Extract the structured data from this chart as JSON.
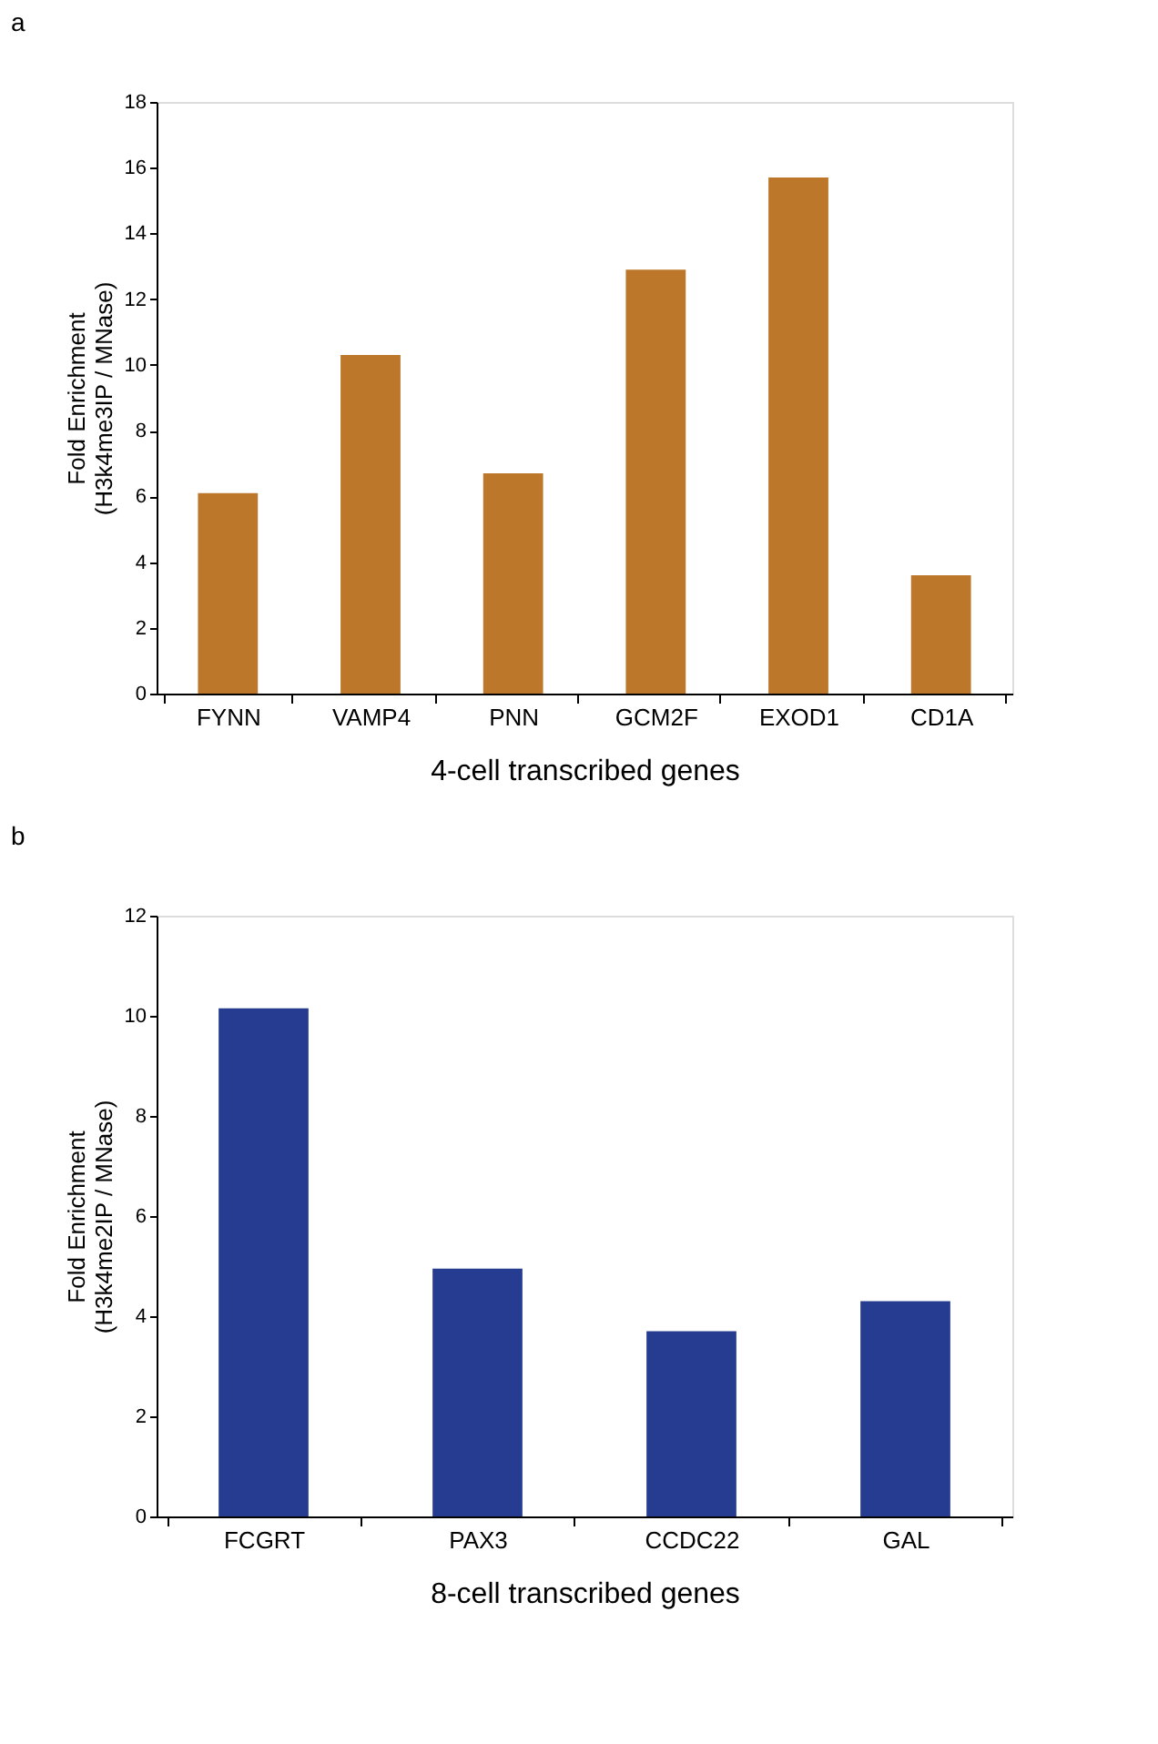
{
  "chart_data": [
    {
      "type": "bar",
      "title": "a",
      "xlabel": "4-cell transcribed genes",
      "ylabel": "Fold Enrichment\n(H3k4me3IP / MNase)",
      "categories": [
        "FYNN",
        "VAMP4",
        "PNN",
        "GCM2F",
        "EXOD1",
        "CD1A"
      ],
      "values": [
        6.1,
        10.3,
        6.7,
        12.9,
        15.7,
        3.6
      ],
      "color": "#bd772a",
      "ylim": [
        0,
        18
      ],
      "yticks": [
        0,
        2,
        4,
        6,
        8,
        10,
        12,
        14,
        16,
        18
      ],
      "grid": false
    },
    {
      "type": "bar",
      "title": "b",
      "xlabel": "8-cell transcribed genes",
      "ylabel": "Fold Enrichment\n(H3k4me2IP / MNase)",
      "categories": [
        "FCGRT",
        "PAX3",
        "CCDC22",
        "GAL"
      ],
      "values": [
        10.15,
        4.95,
        3.7,
        4.3
      ],
      "color": "#263c91",
      "ylim": [
        0,
        12
      ],
      "yticks": [
        0,
        2,
        4,
        6,
        8,
        10,
        12
      ],
      "grid": false
    }
  ]
}
